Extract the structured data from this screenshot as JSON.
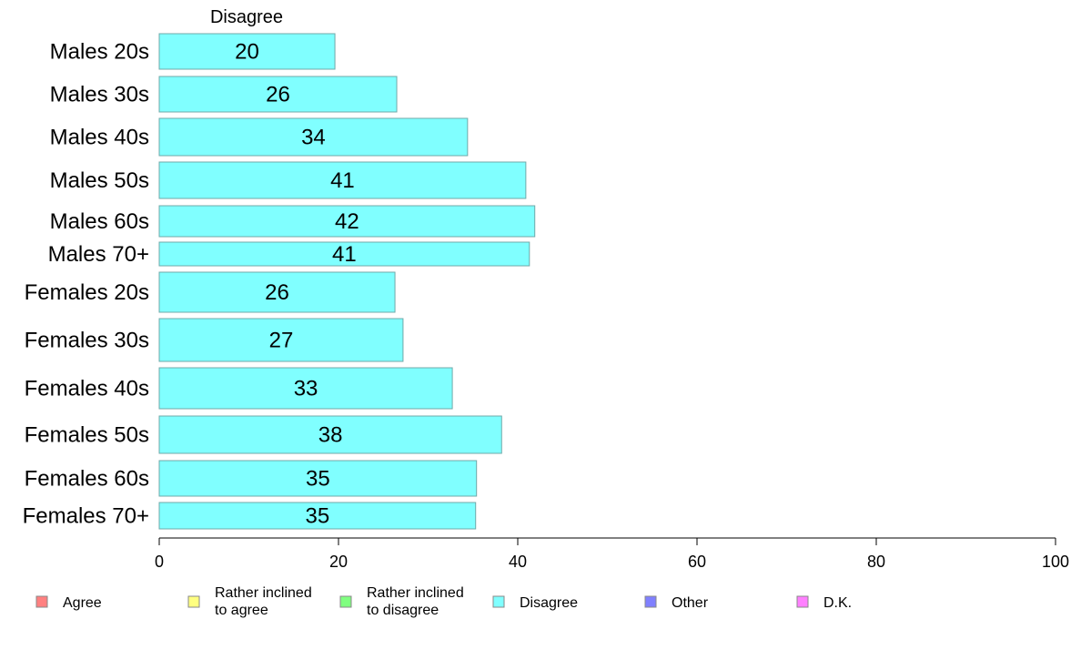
{
  "chart_data": {
    "type": "bar",
    "orientation": "horizontal",
    "title": "",
    "xlabel": "",
    "ylabel": "",
    "xlim": [
      0,
      100
    ],
    "x_ticks": [
      "0",
      "20",
      "40",
      "60",
      "80",
      "100"
    ],
    "grid": false,
    "series_title": "Disagree",
    "categories": [
      "Males 20s",
      "Males 30s",
      "Males 40s",
      "Males 50s",
      "Males 60s",
      "Males 70+",
      "Females 20s",
      "Females 30s",
      "Females 40s",
      "Females 50s",
      "Females 60s",
      "Females 70+"
    ],
    "series": [
      {
        "name": "Disagree",
        "color": "#80ffff",
        "values": [
          19.6,
          26.5,
          34.4,
          40.9,
          41.9,
          41.3,
          26.3,
          27.2,
          32.7,
          38.2,
          35.4,
          35.3
        ],
        "labels": [
          "20",
          "26",
          "34",
          "41",
          "42",
          "41",
          "26",
          "27",
          "33",
          "38",
          "35",
          "35"
        ]
      }
    ],
    "legend": {
      "position": "bottom",
      "entries": [
        {
          "lines": [
            "Agree"
          ],
          "color": "#ff8080"
        },
        {
          "lines": [
            "Rather inclined",
            "to agree"
          ],
          "color": "#ffff80"
        },
        {
          "lines": [
            "Rather inclined",
            "to disagree"
          ],
          "color": "#80ff80"
        },
        {
          "lines": [
            "Disagree"
          ],
          "color": "#80ffff"
        },
        {
          "lines": [
            "Other"
          ],
          "color": "#8080ff"
        },
        {
          "lines": [
            "D.K."
          ],
          "color": "#ff80ff"
        }
      ]
    }
  }
}
